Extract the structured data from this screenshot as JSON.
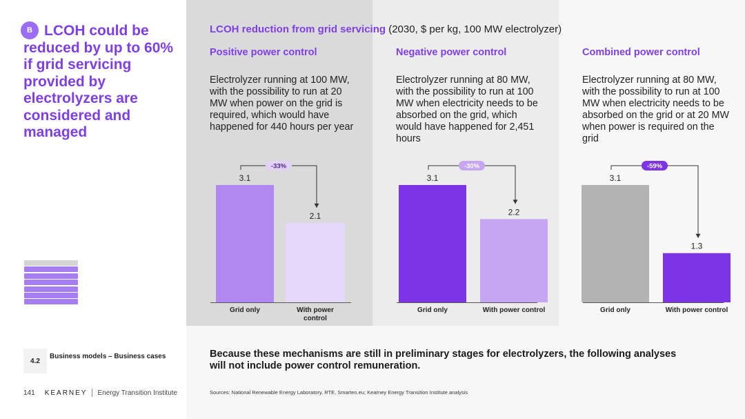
{
  "sidebar": {
    "badge": "B",
    "headline": "LCOH could be reduced by up to 60% if grid servicing provided by electrolyzers are considered and managed",
    "section_number": "4.2",
    "section_label": "Business models – Business cases",
    "page_number": "141",
    "brand": "KEARNEY",
    "institute": "Energy Transition Institute"
  },
  "header": {
    "title_bold": "LCOH reduction from grid servicing",
    "title_rest": " (2030, $ per kg, 100 MW electrolyzer)"
  },
  "panels": [
    {
      "subtitle": "Positive power control",
      "description": "Electrolyzer running at 100 MW, with the possibility to run at 20 MW when power on the grid is required, which would have happened for 440 hours per year"
    },
    {
      "subtitle": "Negative power control",
      "description": "Electrolyzer running at 80 MW, with the possibility to run at 100 MW when electricity needs to be absorbed on the grid, which would have happened for 2,451 hours"
    },
    {
      "subtitle": "Combined power control",
      "description": "Electrolyzer running at 80 MW, with the possibility to run at 100 MW when electricity needs to be absorbed on the grid or at 20 MW when power is required on the grid"
    }
  ],
  "chart_data": [
    {
      "type": "bar",
      "title": "Positive power control",
      "categories": [
        "Grid only",
        "With power control"
      ],
      "values": [
        3.1,
        2.1
      ],
      "value_labels": [
        "3.1",
        "2.1"
      ],
      "change_label": "-33%",
      "colors": [
        "#b187f2",
        "#e6d8fa"
      ],
      "change_pill_color": "#e2d2f9",
      "change_text_color": "#4b2a8a",
      "ylim": [
        0,
        3.1
      ]
    },
    {
      "type": "bar",
      "title": "Negative power control",
      "categories": [
        "Grid only",
        "With power control"
      ],
      "values": [
        3.1,
        2.2
      ],
      "value_labels": [
        "3.1",
        "2.2"
      ],
      "change_label": "-30%",
      "colors": [
        "#7d34e6",
        "#c6a6f3"
      ],
      "change_pill_color": "#c6a6f3",
      "change_text_color": "#ffffff",
      "ylim": [
        0,
        3.1
      ]
    },
    {
      "type": "bar",
      "title": "Combined power control",
      "categories": [
        "Grid only",
        "With power control"
      ],
      "values": [
        3.1,
        1.3
      ],
      "value_labels": [
        "3.1",
        "1.3"
      ],
      "change_label": "-59%",
      "colors": [
        "#b3b3b3",
        "#7d34e6"
      ],
      "change_pill_color": "#7d34e6",
      "change_text_color": "#ffffff",
      "ylim": [
        0,
        3.1
      ]
    }
  ],
  "note": "Because these mechanisms are still in preliminary stages for electrolyzers, the following analyses will not include power control remuneration.",
  "sources": "Sources: National Renewable Energy Laboratory, RTE, Smarten.eu; Kearney Energy Transition Institute analysis"
}
